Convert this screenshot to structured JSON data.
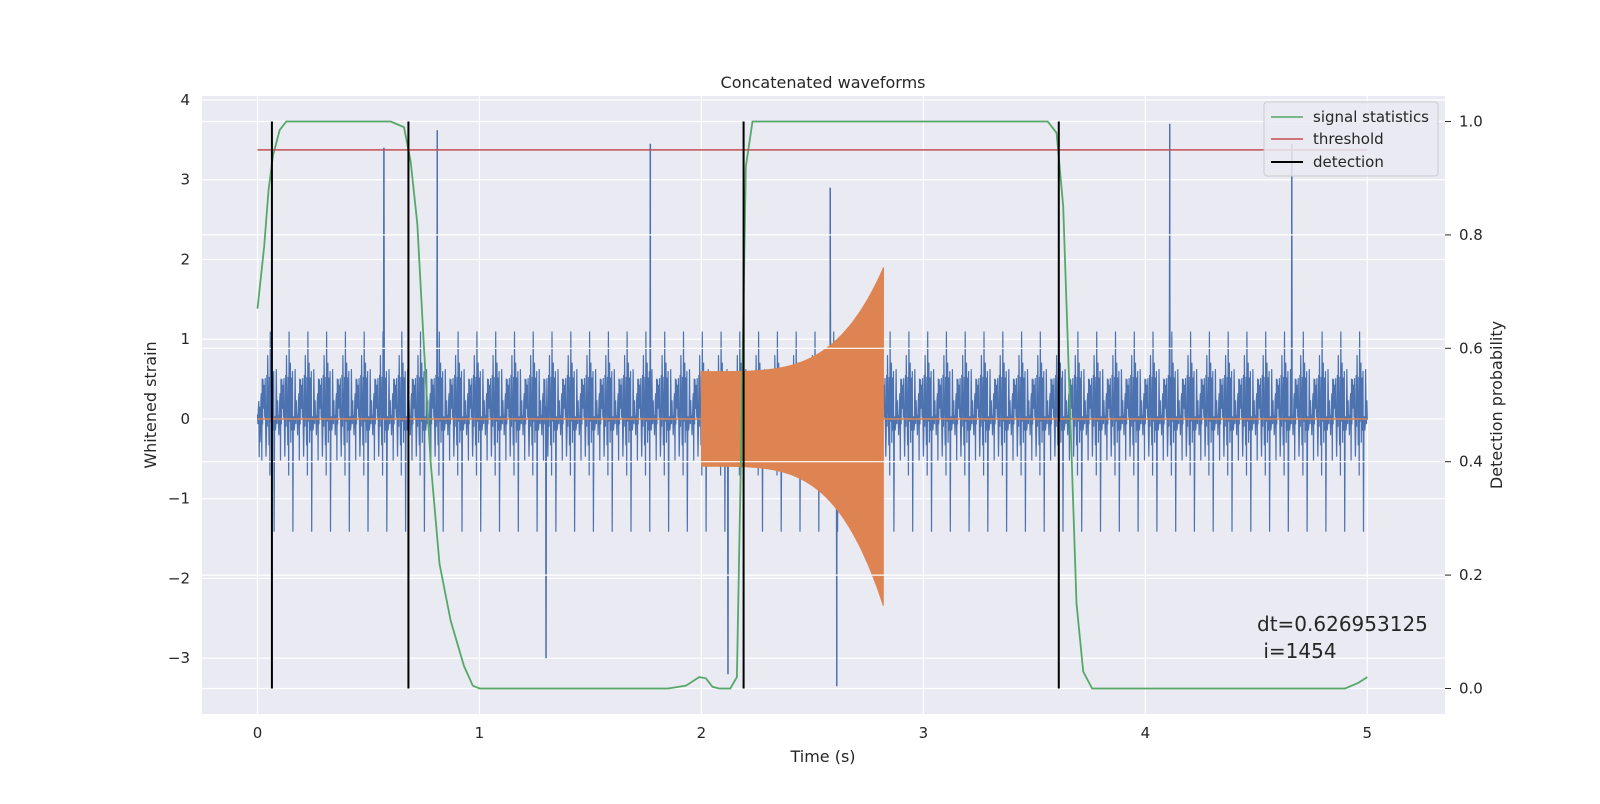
{
  "chart_data": {
    "type": "line",
    "title": "Concatenated waveforms",
    "xlabel": "Time (s)",
    "ylabel": "Whitened strain",
    "y2label": "Detection probability",
    "xlim": [
      -0.25,
      5.35
    ],
    "ylim": [
      -3.7,
      4.05
    ],
    "y2lim": [
      -0.045,
      1.045
    ],
    "xticks": [
      0,
      1,
      2,
      3,
      4,
      5
    ],
    "xtick_labels": [
      "0",
      "1",
      "2",
      "3",
      "4",
      "5"
    ],
    "yticks": [
      -3,
      -2,
      -1,
      0,
      1,
      2,
      3,
      4
    ],
    "ytick_labels": [
      "−3",
      "−2",
      "−1",
      "0",
      "1",
      "2",
      "3",
      "4"
    ],
    "y2ticks": [
      0.0,
      0.2,
      0.4,
      0.6,
      0.8,
      1.0
    ],
    "y2tick_labels": [
      "0.0",
      "0.2",
      "0.4",
      "0.6",
      "0.8",
      "1.0"
    ],
    "grid": true,
    "legend_position": "top-right",
    "series": [
      {
        "axis": "left",
        "color": "#4c72b0",
        "kind": "noise",
        "x_range": [
          0,
          5
        ],
        "approx_core_range": [
          -0.75,
          0.75
        ],
        "approx_peak_range": [
          -3.4,
          3.7
        ],
        "notable_peaks": [
          {
            "x": 0.57,
            "y": 3.4
          },
          {
            "x": 0.81,
            "y": 3.62
          },
          {
            "x": 1.77,
            "y": 3.45
          },
          {
            "x": 2.58,
            "y": 2.9
          },
          {
            "x": 4.11,
            "y": 3.7
          },
          {
            "x": 4.66,
            "y": 3.45
          },
          {
            "x": 2.61,
            "y": -3.35
          },
          {
            "x": 2.12,
            "y": -3.2
          },
          {
            "x": 1.3,
            "y": -3.0
          }
        ]
      },
      {
        "axis": "left",
        "color": "#dd8452",
        "kind": "chirp",
        "x_range": [
          0,
          5
        ],
        "chirp_start": 2.0,
        "chirp_end": 2.82,
        "amp_start": 0.6,
        "amp_end": 1.9,
        "amp_end_negative": 2.35
      },
      {
        "name": "signal statistics",
        "axis": "right",
        "color": "#55a868",
        "points": [
          [
            0,
            0.67
          ],
          [
            0.03,
            0.78
          ],
          [
            0.05,
            0.88
          ],
          [
            0.07,
            0.94
          ],
          [
            0.1,
            0.985
          ],
          [
            0.13,
            1.0
          ],
          [
            0.6,
            1.0
          ],
          [
            0.66,
            0.99
          ],
          [
            0.69,
            0.93
          ],
          [
            0.72,
            0.82
          ],
          [
            0.75,
            0.6
          ],
          [
            0.78,
            0.4
          ],
          [
            0.82,
            0.22
          ],
          [
            0.87,
            0.12
          ],
          [
            0.93,
            0.04
          ],
          [
            0.97,
            0.005
          ],
          [
            1.0,
            0.0
          ],
          [
            1.85,
            0.0
          ],
          [
            1.93,
            0.005
          ],
          [
            1.99,
            0.02
          ],
          [
            2.02,
            0.018
          ],
          [
            2.05,
            0.003
          ],
          [
            2.08,
            0.0
          ],
          [
            2.13,
            0.0
          ],
          [
            2.16,
            0.02
          ],
          [
            2.18,
            0.45
          ],
          [
            2.2,
            0.92
          ],
          [
            2.23,
            1.0
          ],
          [
            3.56,
            1.0
          ],
          [
            3.6,
            0.98
          ],
          [
            3.63,
            0.85
          ],
          [
            3.66,
            0.5
          ],
          [
            3.69,
            0.15
          ],
          [
            3.72,
            0.03
          ],
          [
            3.76,
            0.0
          ],
          [
            4.9,
            0.0
          ],
          [
            4.96,
            0.01
          ],
          [
            5.0,
            0.02
          ]
        ]
      },
      {
        "name": "threshold",
        "axis": "right",
        "color": "#c44e52",
        "y": 0.95,
        "x_range": [
          0,
          5
        ]
      },
      {
        "name": "detection",
        "axis": "right",
        "color": "#000000",
        "x": [
          0.065,
          0.68,
          2.19,
          3.61
        ],
        "y_range": [
          0.0,
          1.0
        ]
      }
    ],
    "annotation": {
      "line1": "dt=0.626953125",
      "line2": " i=1454"
    }
  }
}
